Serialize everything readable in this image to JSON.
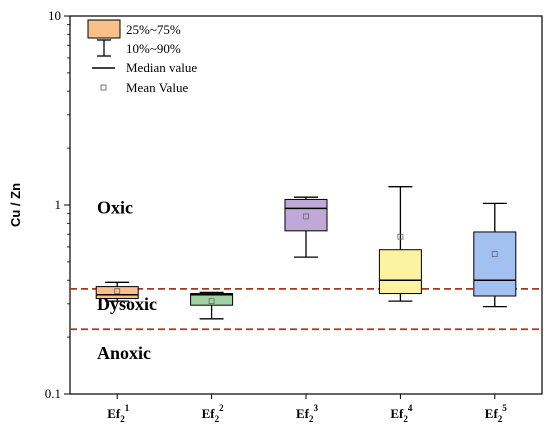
{
  "chart_data": {
    "type": "box",
    "title": "",
    "ylabel": "Cu / Zn",
    "xlabel": "",
    "yscale": "log",
    "ylim": [
      0.1,
      10
    ],
    "yticks": [
      "0.1",
      "1",
      "10"
    ],
    "categories": [
      "Ef",
      "Ef",
      "Ef",
      "Ef",
      "Ef"
    ],
    "category_subscripts": [
      "2",
      "2",
      "2",
      "2",
      "2"
    ],
    "category_superscripts": [
      "1",
      "2",
      "3",
      "4",
      "5"
    ],
    "boxes": [
      {
        "p10": 0.31,
        "q1": 0.32,
        "median": 0.335,
        "q3": 0.37,
        "p90": 0.39,
        "mean": 0.35,
        "color": "#f9c089"
      },
      {
        "p10": 0.25,
        "q1": 0.295,
        "median": 0.335,
        "q3": 0.34,
        "p90": 0.345,
        "mean": 0.31,
        "color": "#9fd39f"
      },
      {
        "p10": 0.53,
        "q1": 0.73,
        "median": 0.96,
        "q3": 1.07,
        "p90": 1.1,
        "mean": 0.87,
        "color": "#c0a8d8"
      },
      {
        "p10": 0.31,
        "q1": 0.34,
        "median": 0.4,
        "q3": 0.58,
        "p90": 1.25,
        "mean": 0.68,
        "color": "#fcf3a2"
      },
      {
        "p10": 0.29,
        "q1": 0.33,
        "median": 0.4,
        "q3": 0.72,
        "p90": 1.02,
        "mean": 0.55,
        "color": "#a3c1f0"
      }
    ],
    "reference_lines": [
      {
        "value": 0.36,
        "color": "#a33a1f"
      },
      {
        "value": 0.22,
        "color": "#a33a1f"
      }
    ],
    "zone_labels": [
      {
        "text": "Oxic",
        "y": 0.97
      },
      {
        "text": "Dysoxic",
        "y": 0.3
      },
      {
        "text": "Anoxic",
        "y": 0.165
      }
    ],
    "legend": {
      "position": "top-left",
      "entries": [
        "25%~75%",
        "10%~90%",
        "Median value",
        "Mean Value"
      ]
    }
  }
}
